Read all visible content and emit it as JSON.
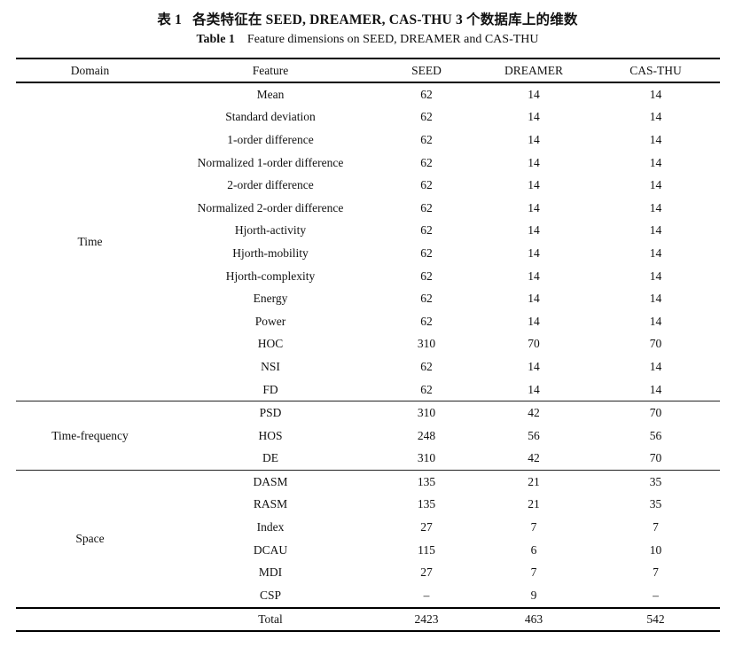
{
  "caption": {
    "zh_label": "表 1",
    "zh_text": "各类特征在 SEED, DREAMER, CAS-THU 3 个数据库上的维数",
    "en_label": "Table 1",
    "en_text": "Feature dimensions on SEED, DREAMER and CAS-THU"
  },
  "table": {
    "columns": [
      "Domain",
      "Feature",
      "SEED",
      "DREAMER",
      "CAS-THU"
    ],
    "sections": [
      {
        "domain": "Time",
        "rows": [
          {
            "feature": "Mean",
            "values": [
              "62",
              "14",
              "14"
            ]
          },
          {
            "feature": "Standard deviation",
            "values": [
              "62",
              "14",
              "14"
            ]
          },
          {
            "feature": "1-order difference",
            "values": [
              "62",
              "14",
              "14"
            ]
          },
          {
            "feature": "Normalized 1-order difference",
            "values": [
              "62",
              "14",
              "14"
            ]
          },
          {
            "feature": "2-order difference",
            "values": [
              "62",
              "14",
              "14"
            ]
          },
          {
            "feature": "Normalized 2-order difference",
            "values": [
              "62",
              "14",
              "14"
            ]
          },
          {
            "feature": "Hjorth-activity",
            "values": [
              "62",
              "14",
              "14"
            ]
          },
          {
            "feature": "Hjorth-mobility",
            "values": [
              "62",
              "14",
              "14"
            ]
          },
          {
            "feature": "Hjorth-complexity",
            "values": [
              "62",
              "14",
              "14"
            ]
          },
          {
            "feature": "Energy",
            "values": [
              "62",
              "14",
              "14"
            ]
          },
          {
            "feature": "Power",
            "values": [
              "62",
              "14",
              "14"
            ]
          },
          {
            "feature": "HOC",
            "values": [
              "310",
              "70",
              "70"
            ]
          },
          {
            "feature": "NSI",
            "values": [
              "62",
              "14",
              "14"
            ]
          },
          {
            "feature": "FD",
            "values": [
              "62",
              "14",
              "14"
            ]
          }
        ]
      },
      {
        "domain": "Time-frequency",
        "rows": [
          {
            "feature": "PSD",
            "values": [
              "310",
              "42",
              "70"
            ]
          },
          {
            "feature": "HOS",
            "values": [
              "248",
              "56",
              "56"
            ]
          },
          {
            "feature": "DE",
            "values": [
              "310",
              "42",
              "70"
            ]
          }
        ]
      },
      {
        "domain": "Space",
        "rows": [
          {
            "feature": "DASM",
            "values": [
              "135",
              "21",
              "35"
            ]
          },
          {
            "feature": "RASM",
            "values": [
              "135",
              "21",
              "35"
            ]
          },
          {
            "feature": "Index",
            "values": [
              "27",
              "7",
              "7"
            ]
          },
          {
            "feature": "DCAU",
            "values": [
              "115",
              "6",
              "10"
            ]
          },
          {
            "feature": "MDI",
            "values": [
              "27",
              "7",
              "7"
            ]
          },
          {
            "feature": "CSP",
            "values": [
              "–",
              "9",
              "–"
            ]
          }
        ]
      }
    ],
    "total": {
      "label": "Total",
      "values": [
        "2423",
        "463",
        "542"
      ]
    }
  }
}
